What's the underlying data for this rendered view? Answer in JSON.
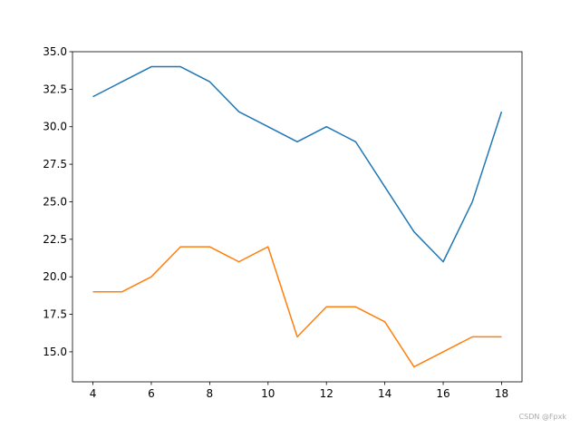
{
  "chart_data": {
    "type": "line",
    "x": [
      4,
      5,
      6,
      7,
      8,
      9,
      10,
      11,
      12,
      13,
      14,
      15,
      16,
      17,
      18
    ],
    "series": [
      {
        "color": "#1f77b4",
        "values": [
          32,
          33,
          34,
          34,
          33,
          31,
          30,
          29,
          30,
          29,
          26,
          23,
          21,
          25,
          31
        ]
      },
      {
        "color": "#ff7f0e",
        "values": [
          19,
          19,
          20,
          22,
          22,
          21,
          22,
          16,
          18,
          18,
          17,
          14,
          15,
          16,
          16
        ]
      }
    ],
    "xlim": [
      3.3,
      18.7
    ],
    "xticks": [
      4,
      6,
      8,
      10,
      12,
      14,
      16,
      18
    ],
    "ylim": [
      13,
      35
    ],
    "yticks": [
      {
        "value": 15,
        "label": "15.0"
      },
      {
        "value": 17.5,
        "label": "17.5"
      },
      {
        "value": 20,
        "label": "20.0"
      },
      {
        "value": 22.5,
        "label": "22.5"
      },
      {
        "value": 25,
        "label": "25.0"
      },
      {
        "value": 27.5,
        "label": "27.5"
      },
      {
        "value": 30,
        "label": "30.0"
      },
      {
        "value": 32.5,
        "label": "32.5"
      },
      {
        "value": 35,
        "label": "35.0"
      }
    ],
    "grid": false
  },
  "watermark": "CSDN @Fpxk"
}
